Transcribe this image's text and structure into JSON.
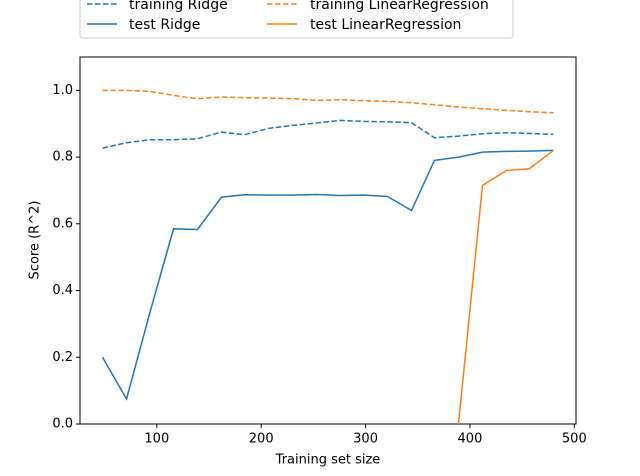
{
  "chart_data": {
    "type": "line",
    "x_label": "Training set size",
    "y_label": "Score (R^2)",
    "x": [
      48,
      71,
      93,
      116,
      139,
      162,
      184,
      207,
      230,
      253,
      275,
      298,
      321,
      344,
      366,
      389,
      412,
      435,
      457,
      480
    ],
    "series": [
      {
        "name": "training Ridge",
        "color": "#1f77b4",
        "style": "dashed",
        "values": [
          0.827,
          0.843,
          0.852,
          0.852,
          0.855,
          0.875,
          0.867,
          0.886,
          0.895,
          0.902,
          0.91,
          0.907,
          0.906,
          0.903,
          0.858,
          0.863,
          0.87,
          0.873,
          0.871,
          0.868
        ]
      },
      {
        "name": "training LinearRegression",
        "color": "#ff7f0e",
        "style": "dashed",
        "values": [
          1.0,
          1.0,
          0.997,
          0.985,
          0.975,
          0.98,
          0.978,
          0.977,
          0.975,
          0.97,
          0.972,
          0.969,
          0.967,
          0.963,
          0.957,
          0.95,
          0.945,
          0.94,
          0.936,
          0.933
        ]
      },
      {
        "name": "test Ridge",
        "color": "#1f77b4",
        "style": "solid",
        "values": [
          0.2,
          0.075,
          0.33,
          0.585,
          0.583,
          0.68,
          0.687,
          0.686,
          0.686,
          0.688,
          0.685,
          0.686,
          0.682,
          0.64,
          0.79,
          0.8,
          0.815,
          0.817,
          0.818,
          0.82
        ]
      },
      {
        "name": "test LinearRegression",
        "color": "#ff7f0e",
        "style": "solid",
        "values": [
          null,
          null,
          null,
          null,
          null,
          null,
          null,
          null,
          null,
          null,
          null,
          null,
          null,
          null,
          null,
          0.0,
          0.715,
          0.76,
          0.765,
          0.82
        ]
      }
    ],
    "xlim": [
      26.4,
      501.6
    ],
    "ylim": [
      0,
      1.1
    ],
    "xticks": [
      100,
      200,
      300,
      400,
      500
    ],
    "yticks": [
      {
        "value": 0,
        "label": "0.0"
      },
      {
        "value": 0.2,
        "label": "0.2"
      },
      {
        "value": 0.4,
        "label": "0.4"
      },
      {
        "value": 0.6,
        "label": "0.6"
      },
      {
        "value": 0.8,
        "label": "0.8"
      },
      {
        "value": 1,
        "label": "1.0"
      }
    ],
    "legend": "top",
    "grid": false
  }
}
